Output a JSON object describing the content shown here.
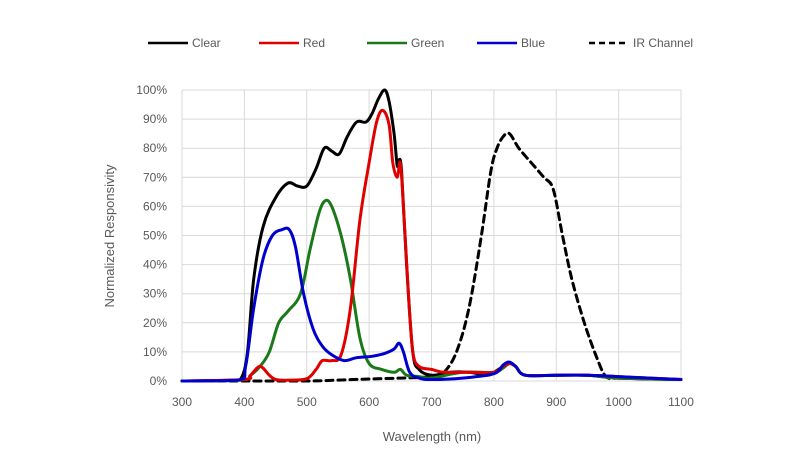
{
  "chart_data": {
    "type": "line",
    "title": "",
    "xlabel": "Wavelength (nm)",
    "ylabel": "Normalized Responsivity",
    "xlim": [
      300,
      1100
    ],
    "ylim": [
      0,
      100
    ],
    "x_ticks": [
      300,
      400,
      500,
      600,
      700,
      800,
      900,
      1000,
      1100
    ],
    "x_tick_labels": [
      "300",
      "400",
      "500",
      "600",
      "700",
      "800",
      "900",
      "1000",
      "1100"
    ],
    "y_ticks": [
      0,
      10,
      20,
      30,
      40,
      50,
      60,
      70,
      80,
      90,
      100
    ],
    "y_tick_labels": [
      "0%",
      "10%",
      "20%",
      "30%",
      "40%",
      "50%",
      "60%",
      "70%",
      "80%",
      "90%",
      "100%"
    ],
    "grid": true,
    "legend_position": "top",
    "series": [
      {
        "name": "Clear",
        "color": "#000000",
        "dash": "solid",
        "points": [
          [
            300,
            0
          ],
          [
            380,
            0.3
          ],
          [
            395,
            1
          ],
          [
            405,
            10
          ],
          [
            415,
            35
          ],
          [
            430,
            53
          ],
          [
            450,
            63
          ],
          [
            470,
            68
          ],
          [
            485,
            67
          ],
          [
            500,
            67
          ],
          [
            515,
            73
          ],
          [
            528,
            80
          ],
          [
            540,
            79
          ],
          [
            552,
            78
          ],
          [
            565,
            84
          ],
          [
            580,
            89
          ],
          [
            595,
            89
          ],
          [
            605,
            92
          ],
          [
            615,
            97
          ],
          [
            625,
            100
          ],
          [
            632,
            96
          ],
          [
            640,
            85
          ],
          [
            645,
            74
          ],
          [
            648,
            76
          ],
          [
            652,
            72
          ],
          [
            660,
            40
          ],
          [
            670,
            10
          ],
          [
            680,
            4
          ],
          [
            700,
            2
          ],
          [
            730,
            3
          ],
          [
            760,
            3
          ],
          [
            790,
            2
          ],
          [
            800,
            3
          ],
          [
            815,
            5
          ],
          [
            825,
            6
          ],
          [
            835,
            5
          ],
          [
            850,
            2
          ],
          [
            900,
            2
          ],
          [
            950,
            2
          ],
          [
            1000,
            1
          ],
          [
            1100,
            0.5
          ]
        ]
      },
      {
        "name": "Red",
        "color": "#e00000",
        "dash": "solid",
        "points": [
          [
            300,
            0
          ],
          [
            400,
            0.5
          ],
          [
            410,
            2
          ],
          [
            425,
            5
          ],
          [
            440,
            2
          ],
          [
            450,
            0.5
          ],
          [
            470,
            0.3
          ],
          [
            500,
            0.8
          ],
          [
            515,
            4
          ],
          [
            525,
            7
          ],
          [
            540,
            7
          ],
          [
            555,
            9
          ],
          [
            570,
            25
          ],
          [
            585,
            55
          ],
          [
            600,
            75
          ],
          [
            612,
            89
          ],
          [
            622,
            93
          ],
          [
            632,
            88
          ],
          [
            638,
            75
          ],
          [
            645,
            70
          ],
          [
            650,
            75
          ],
          [
            655,
            60
          ],
          [
            663,
            30
          ],
          [
            670,
            10
          ],
          [
            680,
            5
          ],
          [
            700,
            4
          ],
          [
            720,
            3
          ],
          [
            760,
            3
          ],
          [
            800,
            3
          ],
          [
            815,
            5
          ],
          [
            825,
            6
          ],
          [
            835,
            5
          ],
          [
            850,
            2
          ],
          [
            900,
            2
          ],
          [
            950,
            2
          ],
          [
            1000,
            1.5
          ],
          [
            1100,
            0.5
          ]
        ]
      },
      {
        "name": "Green",
        "color": "#1a7a1a",
        "dash": "solid",
        "points": [
          [
            300,
            0
          ],
          [
            395,
            0.3
          ],
          [
            410,
            2
          ],
          [
            425,
            5
          ],
          [
            440,
            10
          ],
          [
            455,
            20
          ],
          [
            470,
            24
          ],
          [
            490,
            30
          ],
          [
            505,
            45
          ],
          [
            520,
            58
          ],
          [
            530,
            62
          ],
          [
            540,
            60
          ],
          [
            555,
            50
          ],
          [
            570,
            35
          ],
          [
            585,
            15
          ],
          [
            600,
            6
          ],
          [
            620,
            4
          ],
          [
            640,
            3
          ],
          [
            650,
            4
          ],
          [
            660,
            2
          ],
          [
            680,
            1.5
          ],
          [
            700,
            1
          ],
          [
            750,
            3
          ],
          [
            800,
            3
          ],
          [
            815,
            4.5
          ],
          [
            825,
            6
          ],
          [
            835,
            5
          ],
          [
            850,
            2
          ],
          [
            900,
            2
          ],
          [
            950,
            2
          ],
          [
            1000,
            1
          ],
          [
            1100,
            0.5
          ]
        ]
      },
      {
        "name": "Blue",
        "color": "#0000cc",
        "dash": "solid",
        "points": [
          [
            300,
            0
          ],
          [
            390,
            0.3
          ],
          [
            402,
            5
          ],
          [
            415,
            25
          ],
          [
            430,
            42
          ],
          [
            445,
            50
          ],
          [
            460,
            52
          ],
          [
            472,
            52
          ],
          [
            482,
            46
          ],
          [
            495,
            30
          ],
          [
            510,
            18
          ],
          [
            525,
            12
          ],
          [
            540,
            9
          ],
          [
            560,
            7
          ],
          [
            580,
            8
          ],
          [
            605,
            8.5
          ],
          [
            625,
            9.5
          ],
          [
            640,
            11
          ],
          [
            648,
            13
          ],
          [
            655,
            10
          ],
          [
            665,
            3
          ],
          [
            680,
            1
          ],
          [
            700,
            0.5
          ],
          [
            750,
            1
          ],
          [
            800,
            2.5
          ],
          [
            815,
            5.5
          ],
          [
            825,
            6.5
          ],
          [
            835,
            5
          ],
          [
            850,
            2
          ],
          [
            900,
            2
          ],
          [
            950,
            2
          ],
          [
            1000,
            1.5
          ],
          [
            1100,
            0.5
          ]
        ]
      },
      {
        "name": "IR Channel",
        "color": "#000000",
        "dash": "dashed",
        "points": [
          [
            300,
            0
          ],
          [
            400,
            0
          ],
          [
            500,
            0
          ],
          [
            550,
            0.3
          ],
          [
            600,
            0.7
          ],
          [
            650,
            1
          ],
          [
            700,
            1.5
          ],
          [
            720,
            3
          ],
          [
            740,
            10
          ],
          [
            760,
            25
          ],
          [
            780,
            50
          ],
          [
            795,
            72
          ],
          [
            805,
            80
          ],
          [
            815,
            84
          ],
          [
            825,
            85
          ],
          [
            840,
            80
          ],
          [
            860,
            75
          ],
          [
            880,
            70
          ],
          [
            895,
            66
          ],
          [
            910,
            50
          ],
          [
            925,
            35
          ],
          [
            945,
            20
          ],
          [
            965,
            8
          ],
          [
            980,
            1.5
          ],
          [
            1000,
            1
          ],
          [
            1050,
            0.8
          ],
          [
            1100,
            0.5
          ]
        ]
      }
    ]
  }
}
